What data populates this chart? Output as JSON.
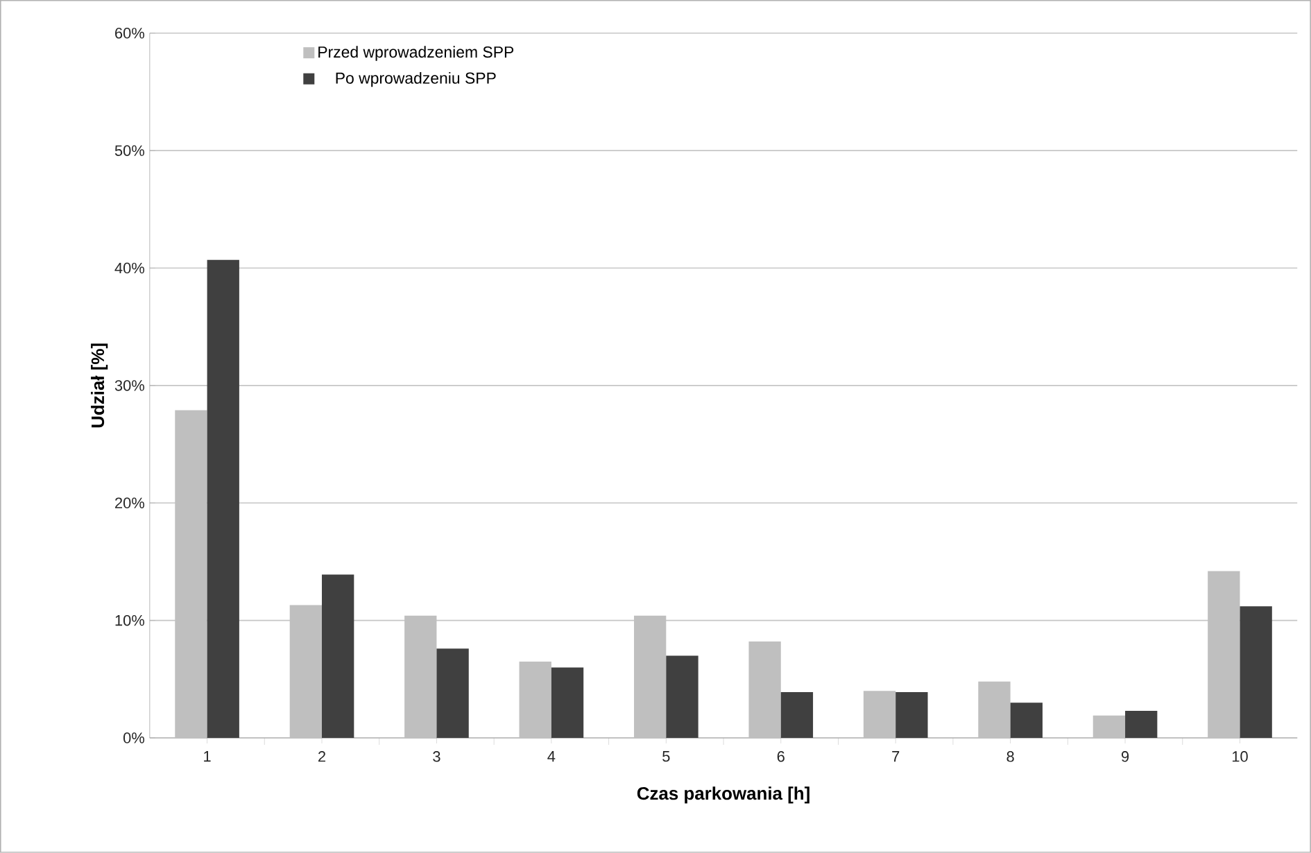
{
  "chart_data": {
    "type": "bar",
    "xlabel": "Czas parkowania [h]",
    "ylabel": "Udział [%]",
    "categories": [
      "1",
      "2",
      "3",
      "4",
      "5",
      "6",
      "7",
      "8",
      "9",
      "10"
    ],
    "series": [
      {
        "name": "Przed wprowadzeniem SPP",
        "color": "#bfbfbf",
        "values": [
          27.9,
          11.3,
          10.4,
          6.5,
          10.4,
          8.2,
          4.0,
          4.8,
          1.9,
          14.2
        ]
      },
      {
        "name": "Po wprowadzeniu SPP",
        "color": "#404040",
        "values": [
          40.7,
          13.9,
          7.6,
          6.0,
          7.0,
          3.9,
          3.9,
          3.0,
          2.3,
          11.2
        ]
      }
    ],
    "ylim": [
      0,
      60
    ],
    "yticks": [
      {
        "value": 0,
        "label": "0%"
      },
      {
        "value": 10,
        "label": "10%"
      },
      {
        "value": 20,
        "label": "20%"
      },
      {
        "value": 30,
        "label": "30%"
      },
      {
        "value": 40,
        "label": "40%"
      },
      {
        "value": 50,
        "label": "50%"
      },
      {
        "value": 60,
        "label": "60%"
      }
    ],
    "grid": "y",
    "legend": "top left"
  }
}
